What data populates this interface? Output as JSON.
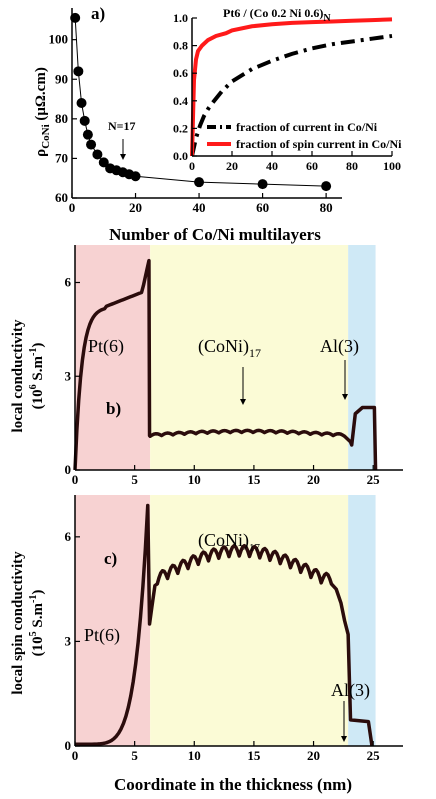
{
  "colors": {
    "pt_region": "#f7d2d2",
    "coni_region": "#fbfbd6",
    "al_region": "#cfe9f6",
    "profile_line": "#2b0c0c",
    "current_line": "#000000",
    "spin_line": "#ff1a1a"
  },
  "chart_data": [
    {
      "id": "a",
      "type": "scatter",
      "panel_label": "a)",
      "xlabel": "Number of Co/Ni multilayers",
      "ylabel": "ρCoNi (μΩ.cm)",
      "ylabel_main": "ρ",
      "ylabel_sub": "CoNi",
      "ylabel_rest": " (μΩ.cm)",
      "xlim": [
        0,
        85
      ],
      "ylim": [
        60,
        108
      ],
      "xticks": [
        0,
        20,
        40,
        60,
        80
      ],
      "yticks": [
        60,
        70,
        80,
        90,
        100
      ],
      "series": [
        {
          "points": [
            [
              1,
              105.5
            ],
            [
              2,
              92
            ],
            [
              3,
              84
            ],
            [
              4,
              79.5
            ],
            [
              5,
              76
            ],
            [
              6,
              73.5
            ],
            [
              8,
              71
            ],
            [
              10,
              69
            ],
            [
              12,
              67.5
            ],
            [
              14,
              67
            ],
            [
              16,
              66.5
            ],
            [
              18,
              66
            ],
            [
              20,
              65.5
            ],
            [
              40,
              64
            ],
            [
              60,
              63.5
            ],
            [
              80,
              63
            ]
          ]
        }
      ],
      "annotation": "N=17",
      "annotation_x": 17
    },
    {
      "id": "a-inset",
      "type": "line",
      "title": "Pt6 / (Co 0.2 Ni 0.6)N",
      "title_main": "Pt6 / (Co 0.2 Ni 0.6)",
      "title_sub": "N",
      "xlim": [
        0,
        100
      ],
      "ylim": [
        0,
        1.0
      ],
      "xticks": [
        0,
        20,
        40,
        60,
        80,
        100
      ],
      "yticks": [
        0.0,
        0.2,
        0.4,
        0.6,
        0.8,
        1.0
      ],
      "series": [
        {
          "name": "fraction of current in Co/Ni",
          "style": "dash-dot",
          "x": [
            0,
            2,
            4,
            6,
            8,
            10,
            15,
            20,
            30,
            40,
            50,
            60,
            70,
            80,
            90,
            100
          ],
          "y": [
            0,
            0.13,
            0.22,
            0.29,
            0.34,
            0.38,
            0.47,
            0.54,
            0.63,
            0.69,
            0.74,
            0.78,
            0.81,
            0.83,
            0.85,
            0.87
          ]
        },
        {
          "name": "fraction of spin current in Co/Ni",
          "style": "solid",
          "x": [
            0,
            1,
            2,
            3,
            5,
            8,
            12,
            17,
            20,
            30,
            40,
            50,
            60,
            70,
            80,
            90,
            100
          ],
          "y": [
            0,
            0.55,
            0.7,
            0.76,
            0.8,
            0.84,
            0.87,
            0.89,
            0.91,
            0.94,
            0.955,
            0.965,
            0.97,
            0.975,
            0.98,
            0.985,
            0.99
          ]
        }
      ]
    },
    {
      "id": "b",
      "type": "area",
      "panel_label": "b)",
      "xlabel": "",
      "ylabel_line1": "local conductivity",
      "ylabel_line2_pre": "(10",
      "ylabel_line2_sup": "6",
      "ylabel_line2_post": " S.m",
      "ylabel_line2_sup2": "-1",
      "ylabel_line2_end": ")",
      "xlim": [
        0,
        27.5
      ],
      "ylim": [
        0,
        7.2
      ],
      "xticks": [
        0,
        5,
        10,
        15,
        20,
        25
      ],
      "yticks": [
        0,
        3,
        6
      ],
      "regions": [
        {
          "name": "Pt(6)",
          "from": 0,
          "to": 6.3
        },
        {
          "name": "(CoNi)17",
          "from": 6.3,
          "to": 22.9
        },
        {
          "name": "Al(3)",
          "from": 22.9,
          "to": 25.2
        }
      ],
      "annotations": [
        {
          "text": "Pt(6)"
        },
        {
          "text_main": "(CoNi)",
          "text_sub": "17"
        },
        {
          "text": "Al(3)"
        }
      ],
      "profile": {
        "pt": {
          "x0": 0,
          "x1": 6.2,
          "peak": 6.7,
          "shoulder": 5.8
        },
        "coni": {
          "x0": 6.3,
          "x1": 22.6,
          "level": 1.2,
          "ripple": 0.07,
          "layers": 17
        },
        "al": {
          "x0": 23.2,
          "x1": 25.2,
          "level": 2.0
        }
      }
    },
    {
      "id": "c",
      "type": "area",
      "panel_label": "c)",
      "xlabel": "Coordinate in the thickness (nm)",
      "ylabel_line1": "local spin conductivity",
      "ylabel_line2_pre": "(10",
      "ylabel_line2_sup": "5",
      "ylabel_line2_post": " S.m",
      "ylabel_line2_sup2": "-1",
      "ylabel_line2_end": ")",
      "xlim": [
        0,
        27.5
      ],
      "ylim": [
        0,
        7.2
      ],
      "xticks": [
        0,
        5,
        10,
        15,
        20,
        25
      ],
      "yticks": [
        0,
        3,
        6
      ],
      "regions": [
        {
          "name": "Pt(6)",
          "from": 0,
          "to": 6.3
        },
        {
          "name": "(CoNi)17",
          "from": 6.3,
          "to": 22.9
        },
        {
          "name": "Al(3)",
          "from": 22.9,
          "to": 25.2
        }
      ],
      "annotations": [
        {
          "text": "Pt(6)"
        },
        {
          "text_main": "(CoNi)",
          "text_sub": "17"
        },
        {
          "text": "Al(3)"
        }
      ],
      "profile": {
        "pt_peak": 6.9,
        "coni_plateau": 5.6,
        "ripple": 0.3,
        "al_level": 0.7
      }
    }
  ]
}
